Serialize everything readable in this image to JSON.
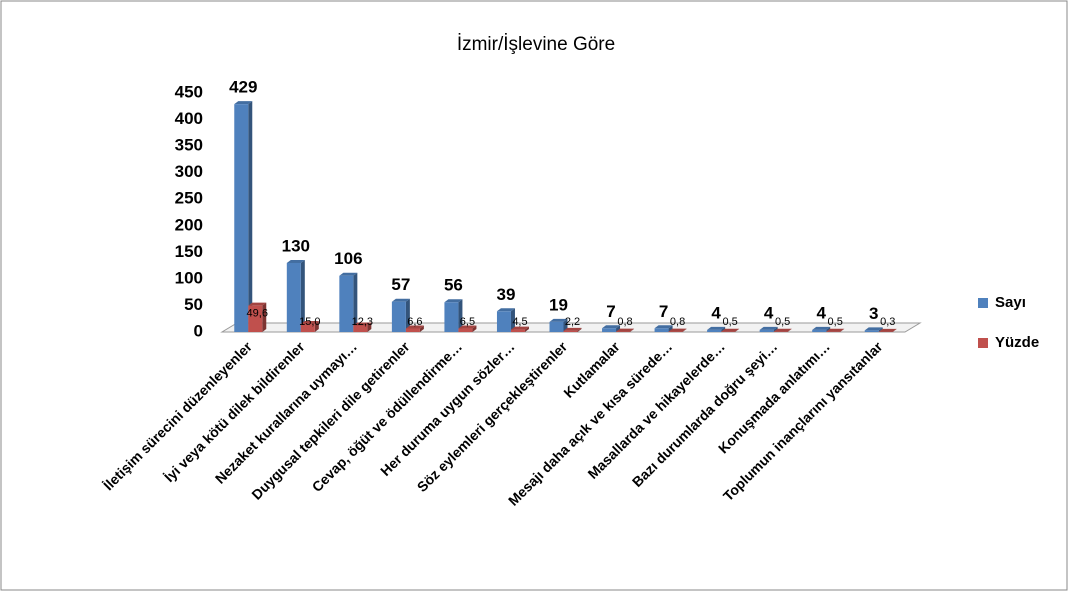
{
  "chart_data": {
    "type": "bar",
    "title": "İzmir/İşlevine Göre",
    "categories": [
      "İletişim sürecini düzenleyenler",
      "İyi veya kötü dilek bildirenler",
      "Nezaket kurallarına uymayı…",
      "Duygusal tepkileri dile getirenler",
      "Cevap, öğüt ve ödüllendirme…",
      "Her duruma uygun sözler…",
      "Söz eylemleri gerçekleştirenler",
      "Kutlamalar",
      "Mesajı daha açık ve kısa sürede…",
      "Masallarda ve hikayelerde…",
      "Bazı durumlarda doğru şeyi…",
      "Konuşmada anlatımı…",
      "Toplumun inançlarını yansıtanlar"
    ],
    "series": [
      {
        "name": "Sayı",
        "color": "#4f81bd",
        "values": [
          429,
          130,
          106,
          57,
          56,
          39,
          19,
          7,
          7,
          4,
          4,
          4,
          3
        ]
      },
      {
        "name": "Yüzde",
        "color": "#c0504d",
        "values": [
          49.6,
          15.0,
          12.3,
          6.6,
          6.5,
          4.5,
          2.2,
          0.8,
          0.8,
          0.5,
          0.5,
          0.5,
          0.3
        ],
        "value_labels": [
          "49,6",
          "15,0",
          "12,3",
          "6,6",
          "6,5",
          "4,5",
          "2,2",
          "0,8",
          "0,8",
          "0,5",
          "0,5",
          "0,5",
          "0,3"
        ]
      }
    ],
    "ylim": [
      0,
      450
    ],
    "yticks": [
      0,
      50,
      100,
      150,
      200,
      250,
      300,
      350,
      400,
      450
    ],
    "grid": false,
    "legend": "right"
  }
}
